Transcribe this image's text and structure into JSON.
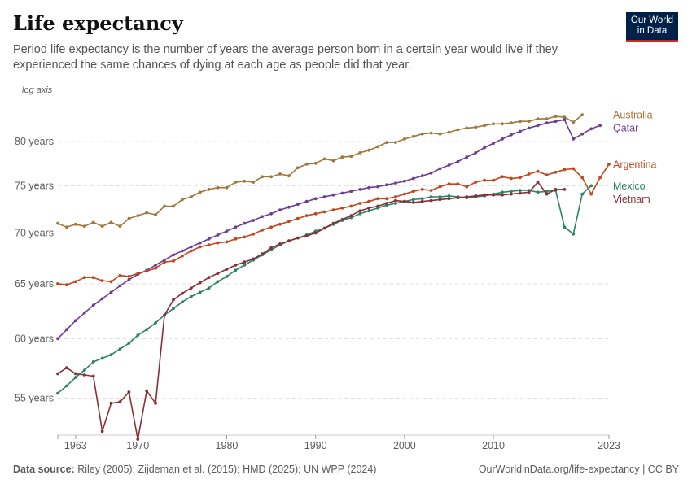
{
  "header": {
    "title": "Life expectancy",
    "subtitle": "Period life expectancy is the number of years the average person born in a certain year would live if they experienced the same chances of dying at each age as people did that year.",
    "logo_line1": "Our World",
    "logo_line2": "in Data"
  },
  "footer": {
    "source_label": "Data source:",
    "source_text": " Riley (2005); Zijdeman et al. (2015); HMD (2025); UN WPP (2024)",
    "url": "OurWorldinData.org/life-expectancy | CC BY"
  },
  "chart_data": {
    "type": "line",
    "y_scale": "log",
    "y_scale_label": "log axis",
    "xlim": [
      1961,
      2023
    ],
    "ylim": [
      52.3,
      84.5
    ],
    "y_ticks": [
      55,
      60,
      65,
      70,
      75,
      80
    ],
    "y_tick_labels": [
      "55 years",
      "60 years",
      "65 years",
      "70 years",
      "75 years",
      "80 years"
    ],
    "x_ticks": [
      1963,
      1970,
      1980,
      1990,
      2000,
      2010,
      2023
    ],
    "x_tick_labels": [
      "1963",
      "1970",
      "1980",
      "1990",
      "2000",
      "2010",
      "2023"
    ],
    "grid": "horizontal dashed",
    "legend": "labels at right end of lines",
    "x_start": 1961,
    "series": [
      {
        "name": "Australia",
        "color": "#a2763b",
        "values": [
          71.0,
          70.6,
          70.9,
          70.7,
          71.1,
          70.7,
          71.1,
          70.7,
          71.5,
          71.8,
          72.1,
          71.9,
          72.8,
          72.8,
          73.5,
          73.8,
          74.3,
          74.6,
          74.8,
          74.8,
          75.4,
          75.5,
          75.4,
          76.0,
          76.0,
          76.3,
          76.1,
          77.0,
          77.4,
          77.5,
          78.0,
          77.8,
          78.2,
          78.3,
          78.7,
          79.0,
          79.4,
          79.9,
          79.9,
          80.3,
          80.6,
          80.9,
          81.0,
          80.9,
          81.1,
          81.4,
          81.6,
          81.7,
          81.9,
          82.1,
          82.1,
          82.2,
          82.4,
          82.4,
          82.7,
          82.7,
          83.0,
          82.9,
          82.3,
          83.2
        ]
      },
      {
        "name": "Qatar",
        "color": "#6d3e91",
        "values": [
          60.0,
          60.8,
          61.6,
          62.3,
          63.0,
          63.6,
          64.2,
          64.8,
          65.4,
          65.9,
          66.3,
          66.8,
          67.3,
          67.8,
          68.2,
          68.6,
          69.0,
          69.4,
          69.8,
          70.2,
          70.6,
          71.0,
          71.3,
          71.7,
          72.0,
          72.4,
          72.7,
          73.0,
          73.3,
          73.6,
          73.8,
          74.0,
          74.2,
          74.4,
          74.6,
          74.8,
          74.9,
          75.1,
          75.3,
          75.5,
          75.8,
          76.1,
          76.4,
          76.9,
          77.3,
          77.7,
          78.2,
          78.7,
          79.3,
          79.8,
          80.3,
          80.8,
          81.2,
          81.6,
          81.9,
          82.2,
          82.4,
          82.6,
          80.3,
          80.9,
          81.5,
          81.9
        ]
      },
      {
        "name": "Argentina",
        "color": "#c0461f",
        "values": [
          65.0,
          64.9,
          65.2,
          65.6,
          65.6,
          65.3,
          65.2,
          65.8,
          65.7,
          66.0,
          66.2,
          66.5,
          67.1,
          67.2,
          67.7,
          68.2,
          68.6,
          68.8,
          69.0,
          69.1,
          69.4,
          69.6,
          69.9,
          70.3,
          70.6,
          70.9,
          71.2,
          71.5,
          71.8,
          72.0,
          72.2,
          72.4,
          72.6,
          72.8,
          73.1,
          73.3,
          73.6,
          73.6,
          73.8,
          74.1,
          74.4,
          74.6,
          74.5,
          74.9,
          75.2,
          75.2,
          74.9,
          75.4,
          75.6,
          75.6,
          76.0,
          75.8,
          75.9,
          76.3,
          76.6,
          76.2,
          76.5,
          76.8,
          76.9,
          75.9,
          74.1,
          75.9,
          77.4
        ]
      },
      {
        "name": "Mexico",
        "color": "#2c8465",
        "values": [
          55.4,
          56.0,
          56.7,
          57.3,
          58.0,
          58.3,
          58.6,
          59.1,
          59.6,
          60.3,
          60.8,
          61.4,
          62.1,
          62.7,
          63.3,
          63.8,
          64.2,
          64.6,
          65.2,
          65.7,
          66.3,
          66.8,
          67.3,
          67.8,
          68.3,
          68.8,
          69.2,
          69.5,
          69.8,
          70.2,
          70.5,
          70.9,
          71.3,
          71.6,
          72.0,
          72.3,
          72.6,
          72.9,
          73.1,
          73.3,
          73.5,
          73.6,
          73.8,
          73.8,
          73.9,
          73.8,
          73.7,
          73.8,
          73.9,
          74.1,
          74.3,
          74.4,
          74.5,
          74.5,
          74.3,
          74.4,
          74.5,
          70.6,
          69.9,
          74.1,
          75.0
        ]
      },
      {
        "name": "Vietnam",
        "color": "#883039",
        "values": [
          57.0,
          57.5,
          57.0,
          56.9,
          56.8,
          52.4,
          54.6,
          54.7,
          55.5,
          51.8,
          55.6,
          54.6,
          62.1,
          63.5,
          64.1,
          64.6,
          65.1,
          65.6,
          66.0,
          66.4,
          66.8,
          67.1,
          67.4,
          67.9,
          68.5,
          68.9,
          69.2,
          69.5,
          69.7,
          70.0,
          70.5,
          71.0,
          71.4,
          71.8,
          72.3,
          72.6,
          72.8,
          73.1,
          73.4,
          73.3,
          73.2,
          73.3,
          73.4,
          73.5,
          73.6,
          73.7,
          73.8,
          73.9,
          74.0,
          74.0,
          74.0,
          74.1,
          74.2,
          74.3,
          75.4,
          74.1,
          74.6,
          74.6
        ]
      }
    ]
  }
}
